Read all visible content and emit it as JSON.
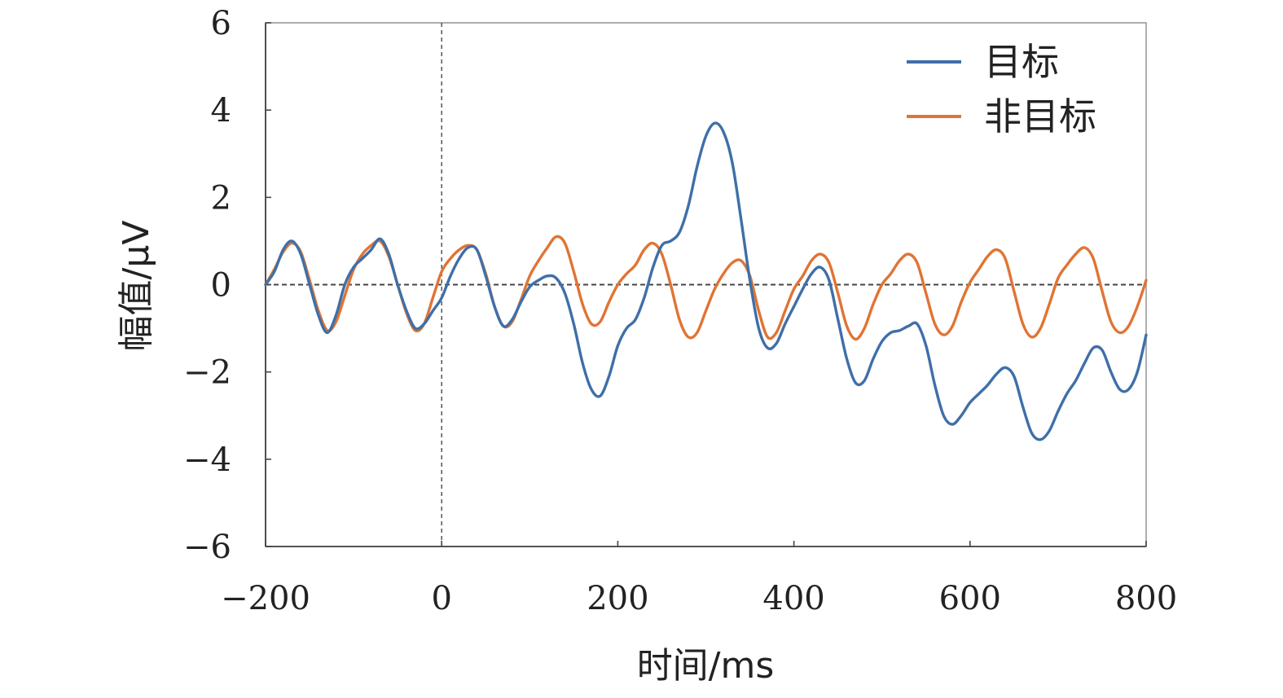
{
  "chart_data": {
    "type": "line",
    "xlabel": "时间/ms",
    "ylabel": "幅值/μV",
    "xlim": [
      -200,
      800
    ],
    "ylim": [
      -6,
      6
    ],
    "x_ticks": [
      -200,
      0,
      200,
      400,
      600,
      800
    ],
    "y_ticks": [
      -6,
      -4,
      -2,
      0,
      2,
      4,
      6
    ],
    "x_tick_labels": [
      "−200",
      "0",
      "200",
      "400",
      "600",
      "800"
    ],
    "y_tick_labels": [
      "−6",
      "−4",
      "−2",
      "0",
      "2",
      "4",
      "6"
    ],
    "grid": false,
    "legend_position": "top-right",
    "reference_lines": {
      "horizontal_y": 0,
      "vertical_x": 0,
      "style": "dashed"
    },
    "series": [
      {
        "name": "目标",
        "color": "#3f6fa8",
        "points": [
          [
            -200,
            0
          ],
          [
            -190,
            0.3
          ],
          [
            -180,
            0.8
          ],
          [
            -170,
            1.0
          ],
          [
            -160,
            0.7
          ],
          [
            -150,
            0
          ],
          [
            -140,
            -0.7
          ],
          [
            -130,
            -1.1
          ],
          [
            -120,
            -0.7
          ],
          [
            -110,
            0
          ],
          [
            -100,
            0.4
          ],
          [
            -90,
            0.6
          ],
          [
            -80,
            0.8
          ],
          [
            -70,
            1.05
          ],
          [
            -60,
            0.7
          ],
          [
            -50,
            0
          ],
          [
            -40,
            -0.6
          ],
          [
            -30,
            -1.0
          ],
          [
            -20,
            -0.9
          ],
          [
            -10,
            -0.6
          ],
          [
            0,
            -0.3
          ],
          [
            10,
            0.2
          ],
          [
            20,
            0.6
          ],
          [
            30,
            0.85
          ],
          [
            40,
            0.8
          ],
          [
            50,
            0.2
          ],
          [
            60,
            -0.5
          ],
          [
            70,
            -0.95
          ],
          [
            80,
            -0.8
          ],
          [
            90,
            -0.4
          ],
          [
            100,
            -0.05
          ],
          [
            110,
            0.1
          ],
          [
            120,
            0.2
          ],
          [
            130,
            0.15
          ],
          [
            140,
            -0.2
          ],
          [
            150,
            -0.9
          ],
          [
            160,
            -1.8
          ],
          [
            170,
            -2.4
          ],
          [
            180,
            -2.55
          ],
          [
            190,
            -2.1
          ],
          [
            200,
            -1.4
          ],
          [
            210,
            -1.0
          ],
          [
            220,
            -0.8
          ],
          [
            230,
            -0.3
          ],
          [
            240,
            0.4
          ],
          [
            250,
            0.9
          ],
          [
            260,
            1.0
          ],
          [
            270,
            1.2
          ],
          [
            280,
            1.8
          ],
          [
            290,
            2.7
          ],
          [
            300,
            3.4
          ],
          [
            310,
            3.7
          ],
          [
            320,
            3.5
          ],
          [
            330,
            2.8
          ],
          [
            340,
            1.5
          ],
          [
            350,
            0.1
          ],
          [
            360,
            -1.0
          ],
          [
            370,
            -1.45
          ],
          [
            380,
            -1.35
          ],
          [
            390,
            -0.9
          ],
          [
            400,
            -0.5
          ],
          [
            410,
            -0.1
          ],
          [
            420,
            0.25
          ],
          [
            430,
            0.4
          ],
          [
            440,
            0.1
          ],
          [
            450,
            -0.8
          ],
          [
            460,
            -1.7
          ],
          [
            470,
            -2.25
          ],
          [
            480,
            -2.2
          ],
          [
            490,
            -1.7
          ],
          [
            500,
            -1.3
          ],
          [
            510,
            -1.1
          ],
          [
            520,
            -1.05
          ],
          [
            530,
            -0.95
          ],
          [
            540,
            -0.9
          ],
          [
            550,
            -1.4
          ],
          [
            560,
            -2.3
          ],
          [
            570,
            -3.0
          ],
          [
            580,
            -3.2
          ],
          [
            590,
            -3.0
          ],
          [
            600,
            -2.7
          ],
          [
            610,
            -2.5
          ],
          [
            620,
            -2.3
          ],
          [
            630,
            -2.05
          ],
          [
            640,
            -1.9
          ],
          [
            650,
            -2.1
          ],
          [
            660,
            -2.8
          ],
          [
            670,
            -3.4
          ],
          [
            680,
            -3.55
          ],
          [
            690,
            -3.35
          ],
          [
            700,
            -2.9
          ],
          [
            710,
            -2.5
          ],
          [
            720,
            -2.2
          ],
          [
            730,
            -1.8
          ],
          [
            740,
            -1.45
          ],
          [
            750,
            -1.5
          ],
          [
            760,
            -2.0
          ],
          [
            770,
            -2.4
          ],
          [
            780,
            -2.4
          ],
          [
            790,
            -2.0
          ],
          [
            800,
            -1.15
          ]
        ]
      },
      {
        "name": "非目标",
        "color": "#e07434",
        "points": [
          [
            -200,
            0
          ],
          [
            -190,
            0.35
          ],
          [
            -180,
            0.75
          ],
          [
            -170,
            0.95
          ],
          [
            -160,
            0.75
          ],
          [
            -150,
            0.1
          ],
          [
            -140,
            -0.6
          ],
          [
            -130,
            -1.05
          ],
          [
            -120,
            -0.85
          ],
          [
            -110,
            -0.25
          ],
          [
            -100,
            0.35
          ],
          [
            -90,
            0.7
          ],
          [
            -80,
            0.9
          ],
          [
            -70,
            1.0
          ],
          [
            -60,
            0.65
          ],
          [
            -50,
            0
          ],
          [
            -40,
            -0.65
          ],
          [
            -30,
            -1.05
          ],
          [
            -20,
            -0.9
          ],
          [
            -10,
            -0.3
          ],
          [
            0,
            0.3
          ],
          [
            10,
            0.6
          ],
          [
            20,
            0.8
          ],
          [
            30,
            0.9
          ],
          [
            40,
            0.8
          ],
          [
            50,
            0.25
          ],
          [
            60,
            -0.5
          ],
          [
            70,
            -0.95
          ],
          [
            80,
            -0.85
          ],
          [
            90,
            -0.35
          ],
          [
            100,
            0.2
          ],
          [
            110,
            0.55
          ],
          [
            120,
            0.85
          ],
          [
            130,
            1.1
          ],
          [
            140,
            0.95
          ],
          [
            150,
            0.3
          ],
          [
            160,
            -0.45
          ],
          [
            170,
            -0.9
          ],
          [
            180,
            -0.85
          ],
          [
            190,
            -0.4
          ],
          [
            200,
            0.0
          ],
          [
            210,
            0.25
          ],
          [
            220,
            0.45
          ],
          [
            230,
            0.8
          ],
          [
            240,
            0.95
          ],
          [
            250,
            0.7
          ],
          [
            260,
            0.0
          ],
          [
            270,
            -0.8
          ],
          [
            280,
            -1.2
          ],
          [
            290,
            -1.1
          ],
          [
            300,
            -0.6
          ],
          [
            310,
            -0.1
          ],
          [
            320,
            0.25
          ],
          [
            330,
            0.5
          ],
          [
            340,
            0.55
          ],
          [
            350,
            0.2
          ],
          [
            360,
            -0.6
          ],
          [
            370,
            -1.2
          ],
          [
            380,
            -1.1
          ],
          [
            390,
            -0.6
          ],
          [
            400,
            -0.1
          ],
          [
            410,
            0.2
          ],
          [
            420,
            0.55
          ],
          [
            430,
            0.7
          ],
          [
            440,
            0.5
          ],
          [
            450,
            -0.2
          ],
          [
            460,
            -0.95
          ],
          [
            470,
            -1.25
          ],
          [
            480,
            -1.0
          ],
          [
            490,
            -0.45
          ],
          [
            500,
            0.0
          ],
          [
            510,
            0.25
          ],
          [
            520,
            0.55
          ],
          [
            530,
            0.7
          ],
          [
            540,
            0.5
          ],
          [
            550,
            -0.2
          ],
          [
            560,
            -0.9
          ],
          [
            570,
            -1.15
          ],
          [
            580,
            -0.95
          ],
          [
            590,
            -0.4
          ],
          [
            600,
            0.05
          ],
          [
            610,
            0.35
          ],
          [
            620,
            0.65
          ],
          [
            630,
            0.8
          ],
          [
            640,
            0.6
          ],
          [
            650,
            -0.15
          ],
          [
            660,
            -0.9
          ],
          [
            670,
            -1.2
          ],
          [
            680,
            -1.0
          ],
          [
            690,
            -0.45
          ],
          [
            700,
            0.15
          ],
          [
            710,
            0.45
          ],
          [
            720,
            0.7
          ],
          [
            730,
            0.85
          ],
          [
            740,
            0.6
          ],
          [
            750,
            -0.15
          ],
          [
            760,
            -0.85
          ],
          [
            770,
            -1.1
          ],
          [
            780,
            -0.95
          ],
          [
            790,
            -0.5
          ],
          [
            800,
            0.1
          ]
        ]
      }
    ]
  }
}
